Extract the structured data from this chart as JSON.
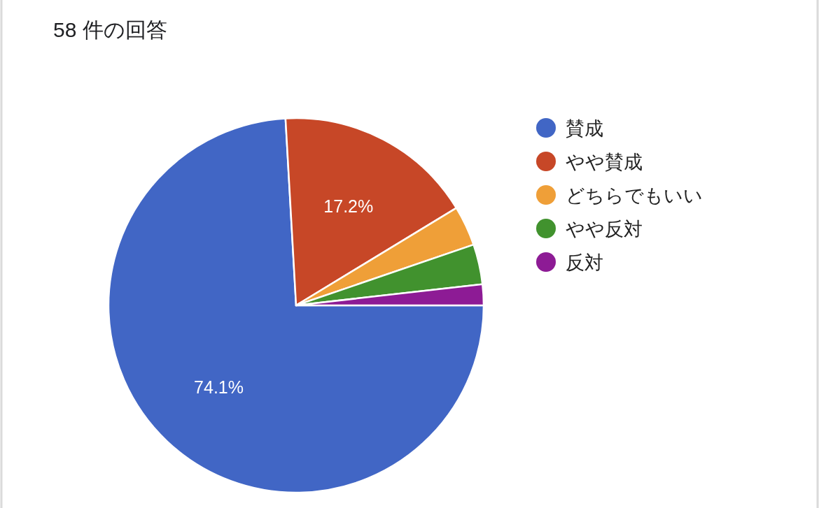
{
  "chart_data": {
    "type": "pie",
    "title": "58 件の回答",
    "categories": [
      "賛成",
      "やや賛成",
      "どちらでもいい",
      "やや反対",
      "反対"
    ],
    "values": [
      74.1,
      17.2,
      3.45,
      3.45,
      1.8
    ],
    "colors": [
      "#4166c5",
      "#c74727",
      "#ef9f38",
      "#41922e",
      "#8d1b95"
    ],
    "value_labels": [
      "74.1%",
      "17.2%",
      null,
      null,
      null
    ],
    "legend": "right"
  }
}
